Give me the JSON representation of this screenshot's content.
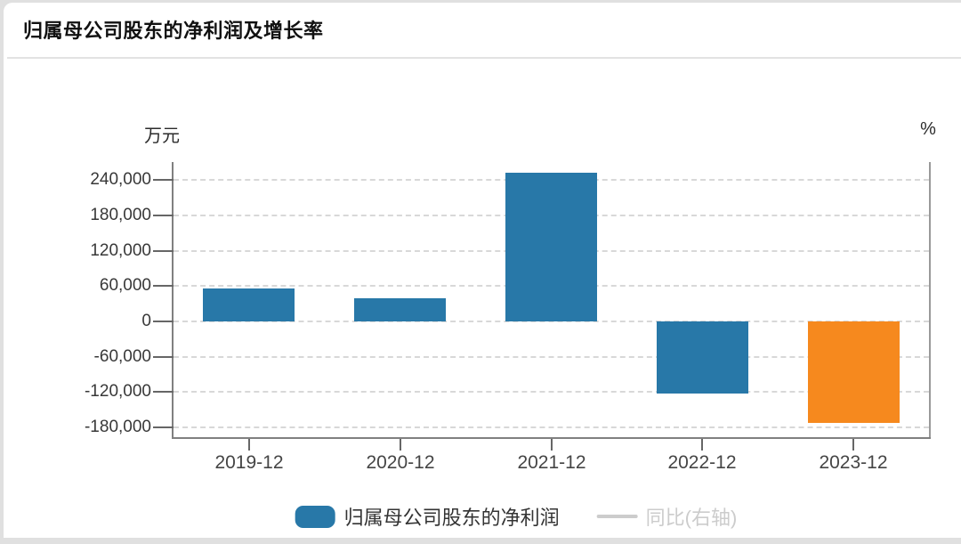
{
  "header": {
    "title": "归属母公司股东的净利润及增长率"
  },
  "chart": {
    "unit_left": "万元",
    "unit_right": "%"
  },
  "legend": {
    "items": [
      {
        "label": "归属母公司股东的净利润",
        "type": "bar",
        "color": "#2878a8",
        "active": true
      },
      {
        "label": "同比(右轴)",
        "type": "line",
        "color": "#cccccc",
        "active": false
      }
    ]
  },
  "colors": {
    "bar_blue": "#2878a8",
    "bar_orange": "#f6891e",
    "grid": "#d8d8d8",
    "axis": "#808080",
    "inactive_legend": "#cccccc"
  },
  "chart_data": {
    "type": "bar",
    "title": "归属母公司股东的净利润及增长率",
    "categories": [
      "2019-12",
      "2020-12",
      "2021-12",
      "2022-12",
      "2023-12"
    ],
    "series": [
      {
        "name": "归属母公司股东的净利润",
        "type": "bar",
        "unit": "万元",
        "axis": "left",
        "values": [
          56000,
          40000,
          253000,
          -123000,
          -173000
        ],
        "colors": [
          "#2878a8",
          "#2878a8",
          "#2878a8",
          "#2878a8",
          "#f6891e"
        ]
      },
      {
        "name": "同比(右轴)",
        "type": "line",
        "unit": "%",
        "axis": "right",
        "visible": false,
        "values": []
      }
    ],
    "xlabel": "",
    "ylabel_left": "万元",
    "ylabel_right": "%",
    "y_ticks": [
      240000,
      180000,
      120000,
      60000,
      0,
      -60000,
      -120000,
      -180000
    ],
    "y_tick_labels": [
      "240,000",
      "180,000",
      "120,000",
      "60,000",
      "0",
      "-60,000",
      "-120,000",
      "-180,000"
    ],
    "y_tick_interval": 60000,
    "ylim": [
      -196500,
      270500
    ],
    "grid": "dashed",
    "legend_position": "bottom"
  }
}
